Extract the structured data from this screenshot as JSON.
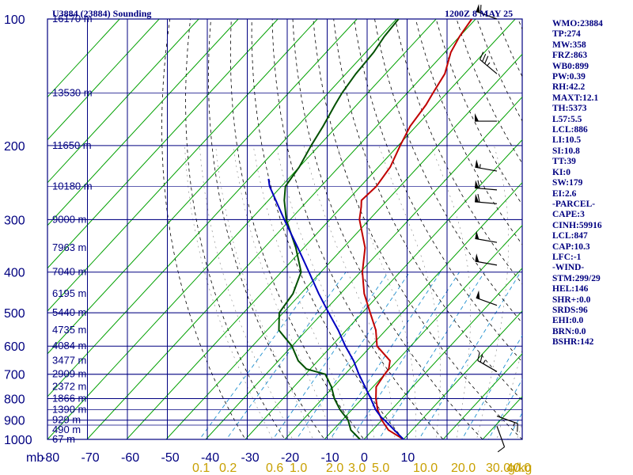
{
  "header": {
    "station": "U3884 (23884) Sounding",
    "time": "1200Z  8 MAY 25"
  },
  "indices": [
    "WMO:23884",
    "TP:274",
    "MW:358",
    "FRZ:863",
    "WB0:899",
    "PW:0.39",
    "RH:42.2",
    "MAXT:12.1",
    "TH:5373",
    "L57:5.5",
    "LCL:886",
    "LI:10.5",
    "SI:10.8",
    "TT:39",
    "KI:0",
    "SW:179",
    "EI:2.6",
    "-PARCEL-",
    "CAPE:3",
    "CINH:59916",
    "LCL:847",
    "CAP:10.3",
    "LFC:-1",
    "-WIND-",
    "STM:299/29",
    "HEL:146",
    "SHR+:0.0",
    "SRDS:96",
    "EHI:0.0",
    "BRN:0.0",
    "BSHR:142"
  ],
  "colors": {
    "frame": "#000080",
    "isotherm": "#00a000",
    "dry_adiabat": "#000000",
    "mixing_ratio": "#2090d0",
    "temperature": "#c00000",
    "dewpoint": "#005000",
    "parcel": "#0000c0",
    "mixing_ratio_labels": "#c8a000"
  },
  "chart_data": {
    "type": "line",
    "title": "U3884 (23884) Sounding",
    "subtitle": "1200Z  8 MAY 25",
    "xlabel": "",
    "ylabel": "mb",
    "y_scale": "log",
    "ylim": [
      1000,
      100
    ],
    "xlim": [
      -80,
      10
    ],
    "pressure_ticks": [
      100,
      200,
      300,
      400,
      500,
      600,
      700,
      800,
      900,
      1000
    ],
    "temperature_ticks": [
      "-80",
      "-70",
      "-60",
      "-50",
      "-40",
      "-30",
      "-20",
      "-10",
      "0",
      "10"
    ],
    "mixing_ratio_ticks": [
      "0.1",
      "0.2",
      "0.6",
      "1.0",
      "2.0",
      "3.0",
      "5.0",
      "10.0",
      "20.0",
      "30.0",
      "40.0"
    ],
    "mixing_ratio_unit": "g/kg",
    "height_labels": [
      {
        "p": 100,
        "label": "16170 m"
      },
      {
        "p": 150,
        "label": "13530 m"
      },
      {
        "p": 200,
        "label": "11650 m"
      },
      {
        "p": 250,
        "label": "10180 m"
      },
      {
        "p": 300,
        "label": "9000 m"
      },
      {
        "p": 350,
        "label": "7963 m"
      },
      {
        "p": 400,
        "label": "7040 m"
      },
      {
        "p": 450,
        "label": "6195 m"
      },
      {
        "p": 500,
        "label": "5440 m"
      },
      {
        "p": 550,
        "label": "4735 m"
      },
      {
        "p": 600,
        "label": "4084 m"
      },
      {
        "p": 650,
        "label": "3477 m"
      },
      {
        "p": 700,
        "label": "2909 m"
      },
      {
        "p": 750,
        "label": "2372 m"
      },
      {
        "p": 800,
        "label": "1866 m"
      },
      {
        "p": 850,
        "label": "1390 m"
      },
      {
        "p": 900,
        "label": "929 m"
      },
      {
        "p": 950,
        "label": "490 m"
      },
      {
        "p": 1000,
        "label": "67 m"
      }
    ],
    "series": [
      {
        "key": "temperature",
        "points": [
          [
            1000,
            10.0
          ],
          [
            950,
            4.0
          ],
          [
            900,
            0.0
          ],
          [
            850,
            -3.5
          ],
          [
            800,
            -6.5
          ],
          [
            750,
            -9.2
          ],
          [
            700,
            -10.0
          ],
          [
            680,
            -10.2
          ],
          [
            650,
            -11.8
          ],
          [
            600,
            -18.5
          ],
          [
            550,
            -22.5
          ],
          [
            500,
            -28.0
          ],
          [
            450,
            -34.0
          ],
          [
            400,
            -39.5
          ],
          [
            350,
            -44.5
          ],
          [
            300,
            -52.5
          ],
          [
            280,
            -55.0
          ],
          [
            270,
            -56.5
          ],
          [
            250,
            -56.0
          ],
          [
            225,
            -57.0
          ],
          [
            200,
            -59.5
          ],
          [
            180,
            -61.5
          ],
          [
            160,
            -62.5
          ],
          [
            150,
            -63.5
          ],
          [
            135,
            -65.0
          ],
          [
            120,
            -68.5
          ],
          [
            110,
            -70.0
          ],
          [
            100,
            -71.0
          ]
        ]
      },
      {
        "key": "dewpoint",
        "points": [
          [
            1000,
            -1.0
          ],
          [
            950,
            -5.5
          ],
          [
            900,
            -8.5
          ],
          [
            850,
            -13.0
          ],
          [
            800,
            -17.0
          ],
          [
            750,
            -20.5
          ],
          [
            700,
            -25.0
          ],
          [
            680,
            -31.0
          ],
          [
            650,
            -35.0
          ],
          [
            600,
            -40.0
          ],
          [
            550,
            -47.0
          ],
          [
            500,
            -51.0
          ],
          [
            450,
            -52.0
          ],
          [
            400,
            -55.0
          ],
          [
            350,
            -62.0
          ],
          [
            300,
            -71.0
          ],
          [
            270,
            -76.0
          ],
          [
            250,
            -79.0
          ],
          [
            225,
            -80.0
          ],
          [
            200,
            -82.0
          ],
          [
            180,
            -83.5
          ],
          [
            160,
            -85.5
          ],
          [
            150,
            -86.5
          ],
          [
            135,
            -87.5
          ],
          [
            120,
            -88.0
          ],
          [
            110,
            -89.0
          ],
          [
            100,
            -89.5
          ]
        ]
      },
      {
        "key": "parcel",
        "points": [
          [
            1000,
            10.0
          ],
          [
            900,
            0.7
          ],
          [
            886,
            -0.8
          ],
          [
            850,
            -4.0
          ],
          [
            800,
            -7.8
          ],
          [
            750,
            -12.0
          ],
          [
            700,
            -16.5
          ],
          [
            650,
            -21.0
          ],
          [
            600,
            -26.5
          ],
          [
            550,
            -32.0
          ],
          [
            500,
            -38.5
          ],
          [
            450,
            -45.5
          ],
          [
            400,
            -53.0
          ],
          [
            350,
            -61.5
          ],
          [
            300,
            -71.5
          ],
          [
            250,
            -83.0
          ],
          [
            240,
            -85.0
          ]
        ]
      }
    ],
    "wind_barbs": [
      {
        "p": 100,
        "dir": 290,
        "speed": 60
      },
      {
        "p": 135,
        "dir": 310,
        "speed": 35
      },
      {
        "p": 175,
        "dir": 270,
        "speed": 50
      },
      {
        "p": 230,
        "dir": 280,
        "speed": 55
      },
      {
        "p": 255,
        "dir": 275,
        "speed": 60
      },
      {
        "p": 275,
        "dir": 275,
        "speed": 60
      },
      {
        "p": 340,
        "dir": 280,
        "speed": 50
      },
      {
        "p": 385,
        "dir": 280,
        "speed": 50
      },
      {
        "p": 480,
        "dir": 290,
        "speed": 50
      },
      {
        "p": 690,
        "dir": 300,
        "speed": 25
      },
      {
        "p": 880,
        "dir": 110,
        "speed": 15
      },
      {
        "p": 930,
        "dir": 160,
        "speed": 10
      }
    ]
  }
}
